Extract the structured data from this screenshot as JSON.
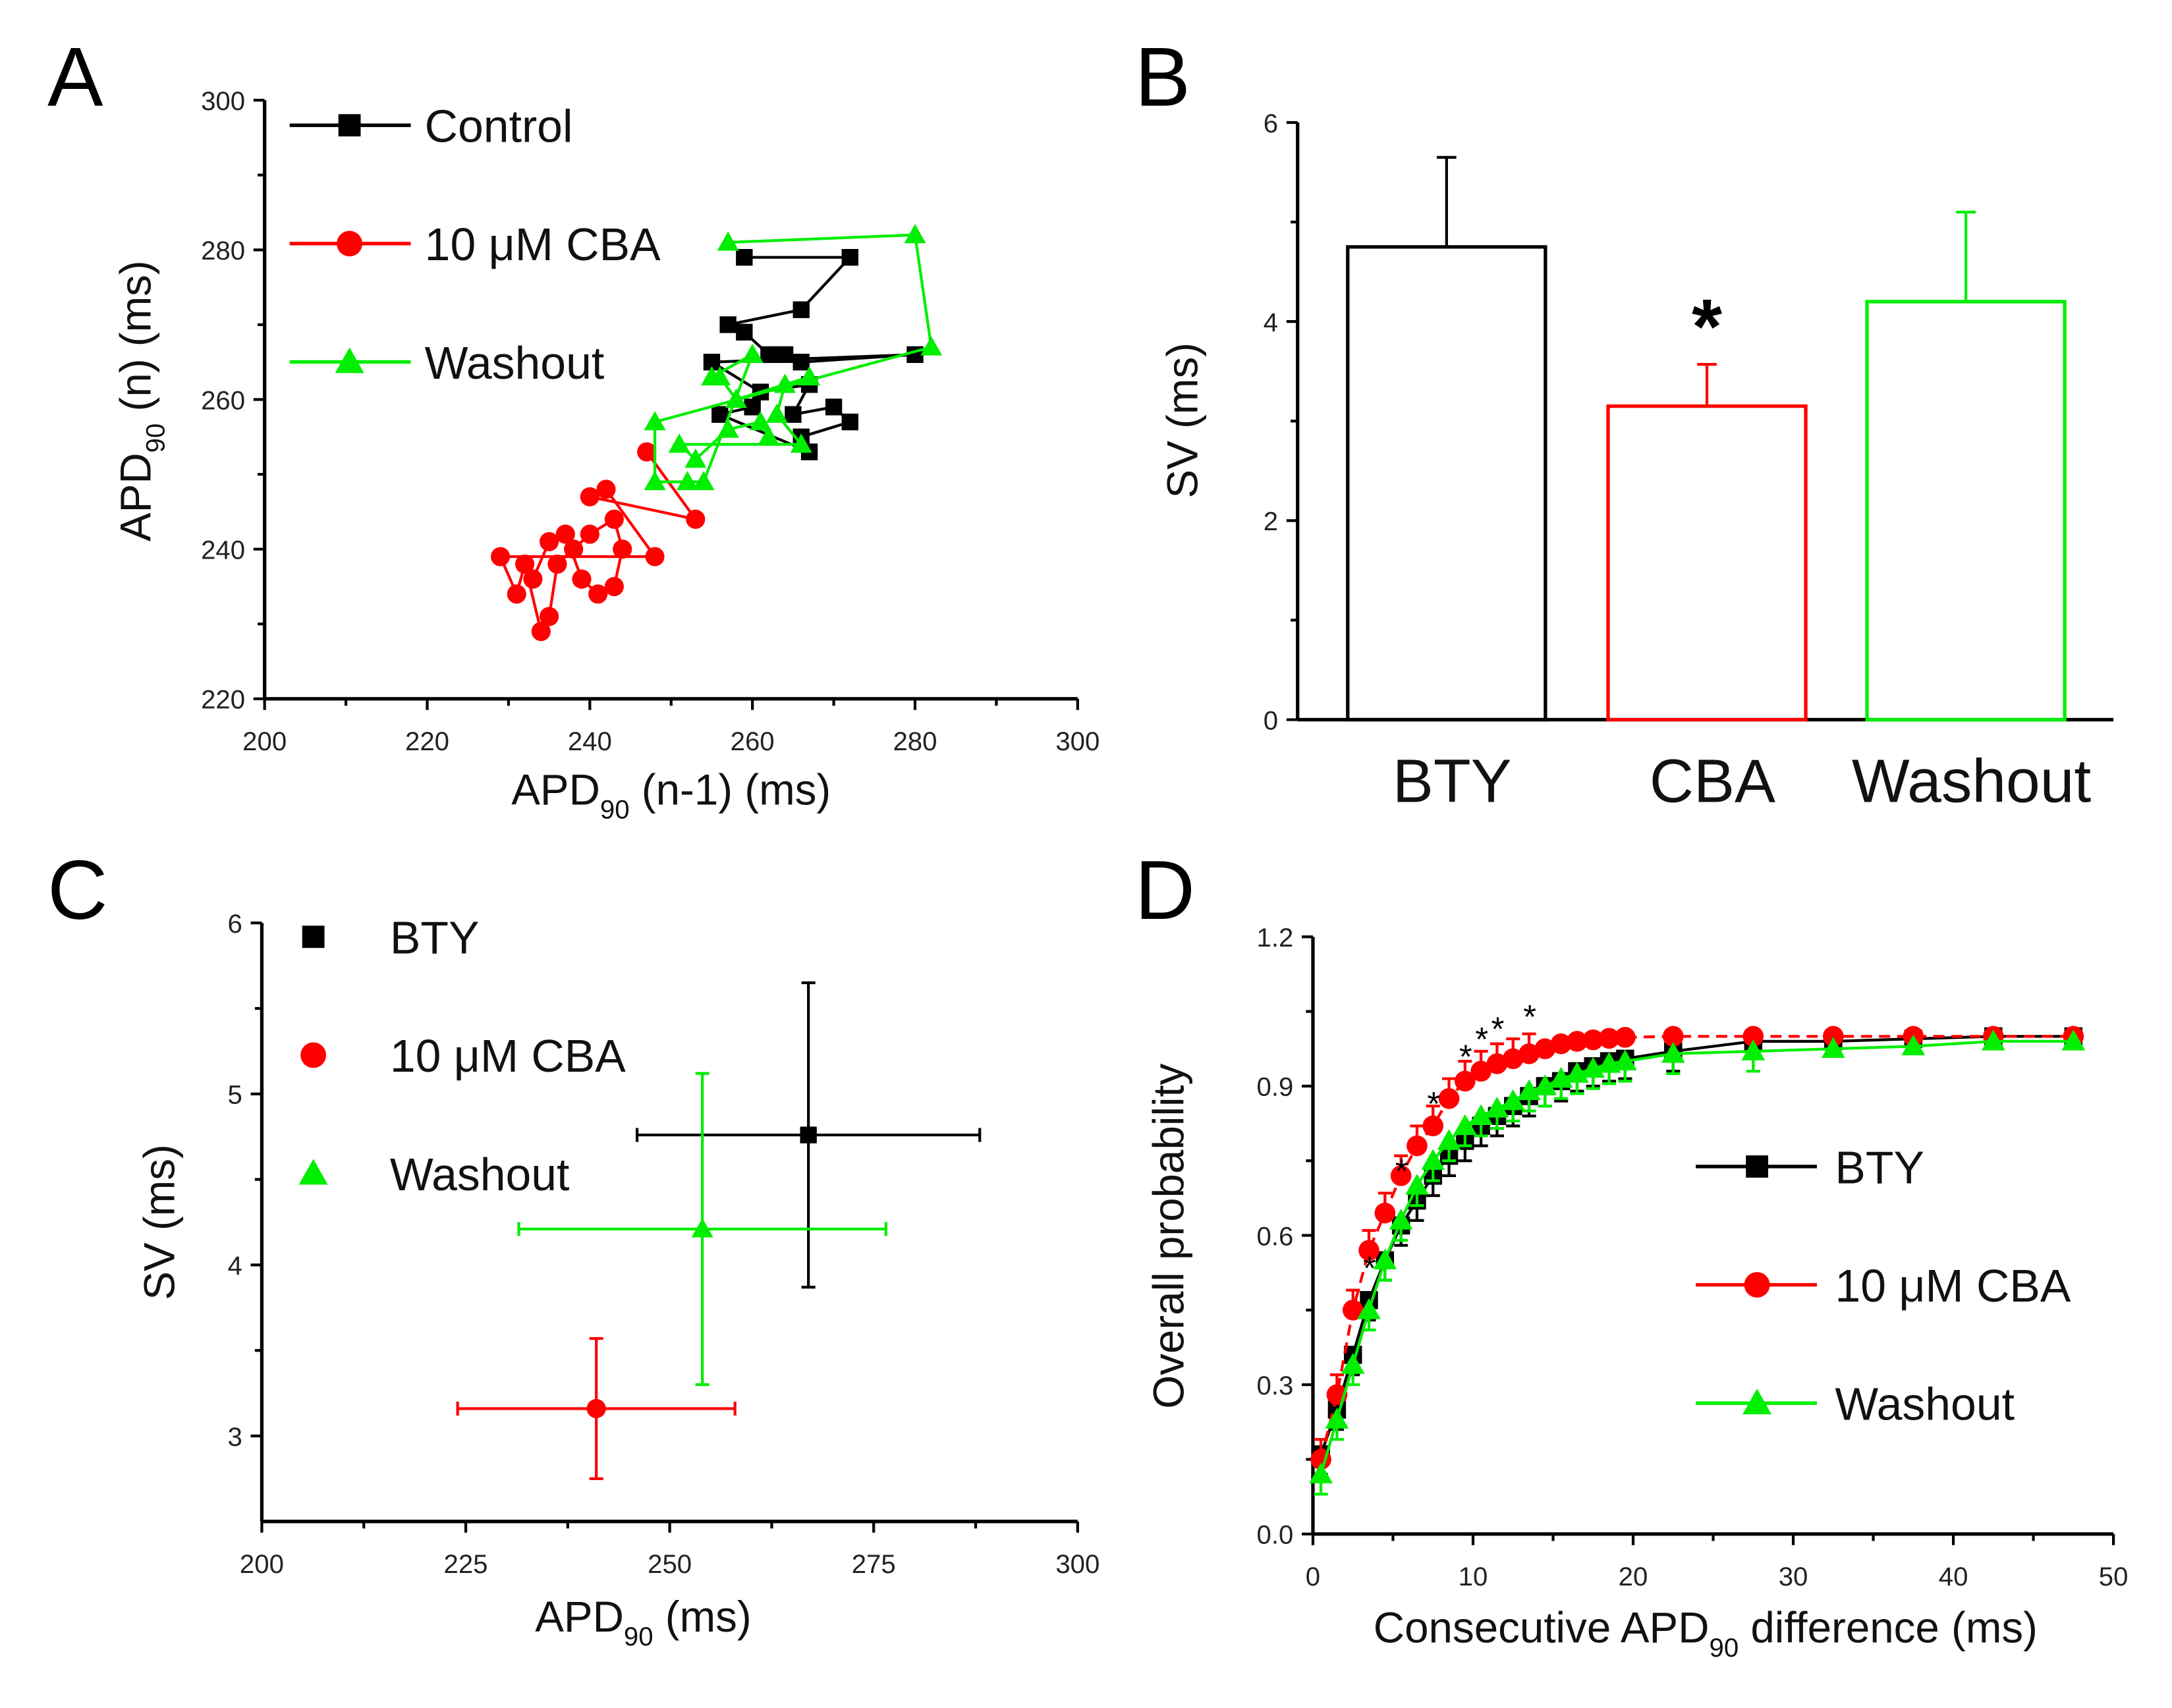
{
  "panels": {
    "A": "A",
    "B": "B",
    "C": "C",
    "D": "D"
  },
  "colors": {
    "control": "#000000",
    "cba": "#ff0000",
    "washout": "#00ee00"
  },
  "chart_data": [
    {
      "id": "A",
      "type": "scatter",
      "xlabel": {
        "main": "APD",
        "sub": "90",
        "rest": " (n-1) (ms)"
      },
      "ylabel": {
        "main": "APD",
        "sub": "90",
        "rest": " (n) (ms)"
      },
      "xlim": [
        200,
        300
      ],
      "ylim": [
        220,
        300
      ],
      "xticks": [
        200,
        220,
        240,
        260,
        280,
        300
      ],
      "yticks": [
        220,
        240,
        260,
        280,
        300
      ],
      "legend": [
        "Control",
        "10 μM CBA",
        "Washout"
      ],
      "legend_position": "top-left",
      "series": [
        {
          "name": "Control",
          "marker": "square",
          "color": "#000000",
          "points": [
            [
              259,
              279
            ],
            [
              272,
              279
            ],
            [
              266,
              272
            ],
            [
              257,
              270
            ],
            [
              259,
              269
            ],
            [
              262,
              266
            ],
            [
              264,
              266
            ],
            [
              266,
              265
            ],
            [
              280,
              266
            ],
            [
              255,
              265
            ],
            [
              261,
              261
            ],
            [
              267,
              262
            ],
            [
              265,
              258
            ],
            [
              270,
              259
            ],
            [
              272,
              257
            ],
            [
              266,
              255
            ],
            [
              267,
              253
            ],
            [
              256,
              258
            ],
            [
              260,
              259
            ]
          ]
        },
        {
          "name": "10 μM CBA",
          "marker": "circle",
          "color": "#ff0000",
          "points": [
            [
              247,
              253
            ],
            [
              253,
              244
            ],
            [
              240,
              247
            ],
            [
              242,
              248
            ],
            [
              248,
              239
            ],
            [
              229,
              239
            ],
            [
              231,
              234
            ],
            [
              232,
              238
            ],
            [
              234,
              229
            ],
            [
              235,
              231
            ],
            [
              236,
              238
            ],
            [
              238,
              240
            ],
            [
              240,
              242
            ],
            [
              243,
              244
            ],
            [
              244,
              240
            ],
            [
              243,
              235
            ],
            [
              241,
              234
            ],
            [
              239,
              236
            ],
            [
              237,
              242
            ],
            [
              235,
              241
            ],
            [
              233,
              236
            ]
          ]
        },
        {
          "name": "Washout",
          "marker": "triangle",
          "color": "#00ee00",
          "points": [
            [
              257,
              281
            ],
            [
              280,
              282
            ],
            [
              282,
              267
            ],
            [
              248,
              257
            ],
            [
              248,
              249
            ],
            [
              252,
              249
            ],
            [
              254,
              249
            ],
            [
              260,
              266
            ],
            [
              255,
              263
            ],
            [
              256,
              263
            ],
            [
              258,
              260
            ],
            [
              267,
              263
            ],
            [
              264,
              262
            ],
            [
              263,
              258
            ],
            [
              266,
              254
            ],
            [
              251,
              254
            ],
            [
              253,
              252
            ],
            [
              257,
              256
            ],
            [
              261,
              257
            ],
            [
              262,
              255
            ]
          ]
        }
      ]
    },
    {
      "id": "B",
      "type": "bar",
      "categories": [
        "BTY",
        "CBA",
        "Washout"
      ],
      "values": [
        4.75,
        3.15,
        4.2
      ],
      "errors": [
        0.9,
        0.42,
        0.9
      ],
      "colors": [
        "#000000",
        "#ff0000",
        "#00ee00"
      ],
      "ylabel": "SV (ms)",
      "ylim": [
        0,
        6
      ],
      "yticks": [
        0,
        2,
        4,
        6
      ],
      "annotations": [
        {
          "category": "CBA",
          "text": "*"
        }
      ]
    },
    {
      "id": "C",
      "type": "scatter",
      "xlabel": {
        "main": "APD",
        "sub": "90",
        "rest": " (ms)"
      },
      "ylabel": "SV (ms)",
      "xlim": [
        200,
        300
      ],
      "ylim": [
        2.5,
        6
      ],
      "xticks": [
        200,
        225,
        250,
        275,
        300
      ],
      "yticks": [
        3,
        4,
        5,
        6
      ],
      "legend_position": "top-left",
      "series": [
        {
          "name": "BTY",
          "marker": "square",
          "color": "#000000",
          "x": 267,
          "y": 4.76,
          "xerr": 21,
          "yerr": 0.89
        },
        {
          "name": "10 μM CBA",
          "marker": "circle",
          "color": "#ff0000",
          "x": 241,
          "y": 3.16,
          "xerr": 17,
          "yerr": 0.41
        },
        {
          "name": "Washout",
          "marker": "triangle",
          "color": "#00ee00",
          "x": 254,
          "y": 4.21,
          "xerr": 22.5,
          "yerr": 0.91
        }
      ]
    },
    {
      "id": "D",
      "type": "line",
      "xlabel": {
        "main": "Consecutive APD",
        "sub": "90",
        "rest": " difference (ms)"
      },
      "ylabel": "Overall probability",
      "xlim": [
        0,
        50
      ],
      "ylim": [
        0,
        1.2
      ],
      "xticks": [
        0,
        10,
        20,
        30,
        40,
        50
      ],
      "yticks": [
        0,
        0.3,
        0.6,
        0.9,
        1.2
      ],
      "legend_position": "right",
      "x": [
        0.5,
        1.5,
        2.5,
        3.5,
        4.5,
        5.5,
        6.5,
        7.5,
        8.5,
        9.5,
        10.5,
        11.5,
        12.5,
        13.5,
        14.5,
        15.5,
        16.5,
        17.5,
        18.5,
        19.5,
        22.5,
        27.5,
        32.5,
        37.5,
        42.5,
        47.5
      ],
      "series": [
        {
          "name": "BTY",
          "marker": "square",
          "color": "#000000",
          "values": [
            0.16,
            0.25,
            0.36,
            0.47,
            0.55,
            0.62,
            0.67,
            0.72,
            0.76,
            0.79,
            0.82,
            0.84,
            0.86,
            0.88,
            0.9,
            0.91,
            0.93,
            0.94,
            0.95,
            0.955,
            0.97,
            0.99,
            0.99,
            0.995,
            1.0,
            1.0
          ],
          "err": 0.04
        },
        {
          "name": "10 μM CBA",
          "marker": "circle",
          "color": "#ff0000",
          "values": [
            0.15,
            0.28,
            0.45,
            0.57,
            0.645,
            0.72,
            0.78,
            0.82,
            0.875,
            0.91,
            0.93,
            0.945,
            0.955,
            0.965,
            0.975,
            0.985,
            0.99,
            0.993,
            0.996,
            0.998,
            1.0,
            1.0,
            1.0,
            1.0,
            1.0,
            1.0
          ],
          "err": 0.04
        },
        {
          "name": "Washout",
          "marker": "triangle",
          "color": "#00ee00",
          "values": [
            0.12,
            0.23,
            0.34,
            0.45,
            0.55,
            0.63,
            0.7,
            0.75,
            0.79,
            0.82,
            0.84,
            0.855,
            0.87,
            0.89,
            0.9,
            0.915,
            0.925,
            0.935,
            0.945,
            0.95,
            0.965,
            0.97,
            0.975,
            0.98,
            0.99,
            0.99
          ],
          "err": 0.04
        }
      ],
      "significance_x": [
        2.5,
        4.5,
        6.5,
        8.5,
        9.5,
        10.5,
        12.5
      ],
      "significance_label": "*"
    }
  ]
}
